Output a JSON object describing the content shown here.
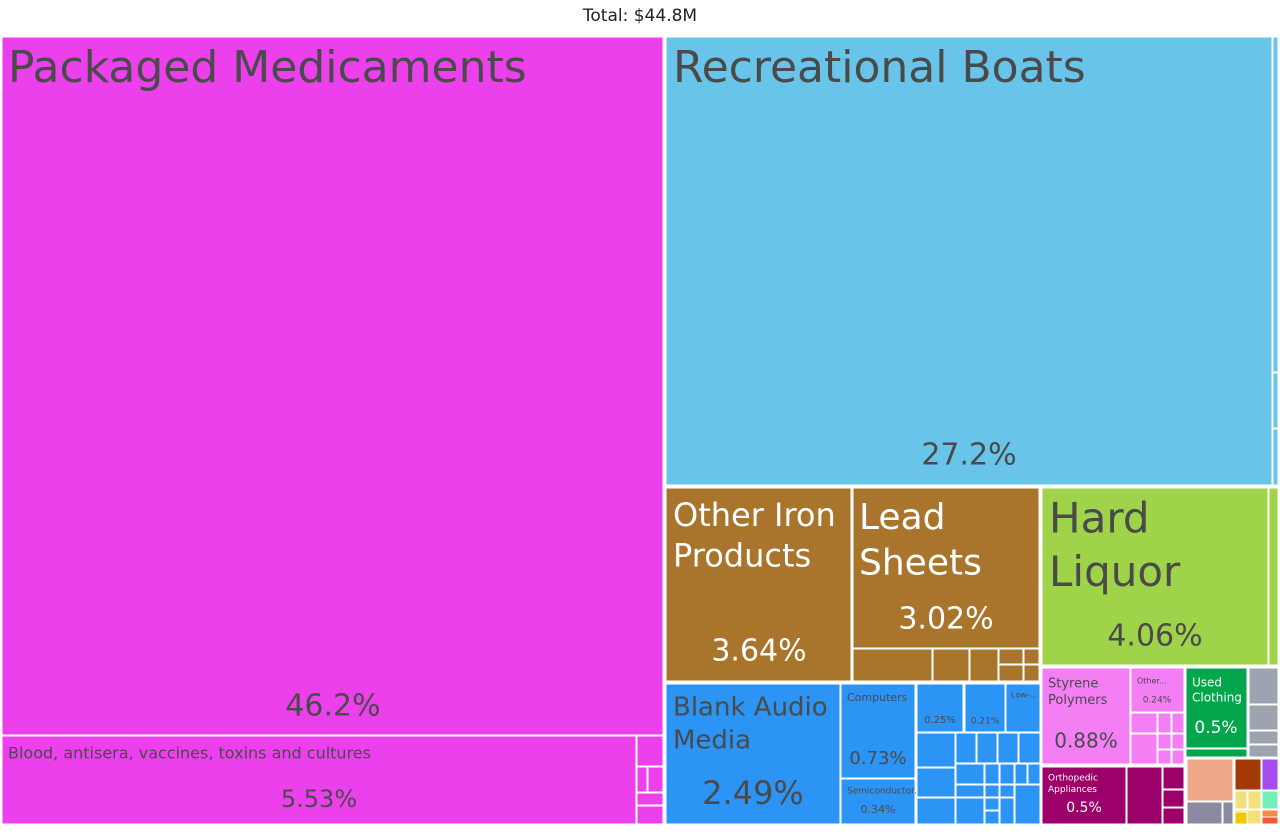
{
  "total_label": "Total: $44.8M",
  "chart_data": {
    "type": "treemap",
    "title": "Total: $44.8M",
    "nodes": [
      {
        "id": "pharma",
        "name": "",
        "color": "#ed40ed",
        "children": [
          {
            "id": "packaged-medicaments",
            "name": "Packaged Medicaments",
            "pct": "46.2%",
            "value": 46.2,
            "color": "#ed40ed",
            "text": "dark"
          },
          {
            "id": "blood-antisera",
            "name": "Blood, antisera, vaccines, toxins and cultures",
            "pct": "5.53%",
            "value": 5.53,
            "color": "#ed40ed",
            "text": "dark"
          }
        ]
      },
      {
        "id": "transport",
        "name": "",
        "color": "#69c4e9",
        "children": [
          {
            "id": "recreational-boats",
            "name": "Recreational Boats",
            "pct": "27.2%",
            "value": 27.2,
            "color": "#69c4e9",
            "text": "dark"
          }
        ]
      },
      {
        "id": "metals",
        "name": "",
        "color": "#a9742b",
        "children": [
          {
            "id": "other-iron-products",
            "name": "Other Iron Products",
            "pct": "3.64%",
            "value": 3.64,
            "color": "#a9742b",
            "text": "light"
          },
          {
            "id": "lead-sheets",
            "name": "Lead Sheets",
            "pct": "3.02%",
            "value": 3.02,
            "color": "#a9742b",
            "text": "light"
          }
        ]
      },
      {
        "id": "foodstuffs",
        "name": "",
        "color": "#9fd44a",
        "children": [
          {
            "id": "hard-liquor",
            "name": "Hard Liquor",
            "pct": "4.06%",
            "value": 4.06,
            "color": "#9fd44a",
            "text": "dark"
          }
        ]
      },
      {
        "id": "machines",
        "name": "",
        "color": "#2b94f5",
        "children": [
          {
            "id": "blank-audio-media",
            "name": "Blank Audio Media",
            "pct": "2.49%",
            "value": 2.49,
            "color": "#2b94f5",
            "text": "dark"
          },
          {
            "id": "computers",
            "name": "Computers",
            "pct": "0.73%",
            "value": 0.73,
            "color": "#2b94f5",
            "text": "dark"
          },
          {
            "id": "semiconductor",
            "name": "Semiconductor...",
            "pct": "0.34%",
            "value": 0.34,
            "color": "#2b94f5",
            "text": "dark"
          },
          {
            "id": "machines-025",
            "name": "",
            "pct": "0.25%",
            "value": 0.25,
            "color": "#2b94f5",
            "text": "dark"
          },
          {
            "id": "machines-021",
            "name": "",
            "pct": "0.21%",
            "value": 0.21,
            "color": "#2b94f5",
            "text": "dark"
          },
          {
            "id": "low-voltage",
            "name": "Low-...",
            "pct": "",
            "color": "#2b94f5",
            "text": "dark"
          }
        ]
      },
      {
        "id": "plastics",
        "name": "",
        "color": "#f47ff4",
        "children": [
          {
            "id": "styrene-polymers",
            "name": "Styrene Polymers",
            "pct": "0.88%",
            "value": 0.88,
            "color": "#f47ff4",
            "text": "dark"
          },
          {
            "id": "plastics-other",
            "name": "Other...",
            "pct": "0.24%",
            "value": 0.24,
            "color": "#f47ff4",
            "text": "dark"
          }
        ]
      },
      {
        "id": "textiles",
        "name": "",
        "color": "#03a64a",
        "children": [
          {
            "id": "used-clothing",
            "name": "Used Clothing",
            "pct": "0.5%",
            "value": 0.5,
            "color": "#03a64a",
            "text": "light"
          }
        ]
      },
      {
        "id": "instruments",
        "name": "",
        "color": "#9c0069",
        "children": [
          {
            "id": "orthopedic-appliances",
            "name": "Orthopedic Appliances",
            "pct": "0.5%",
            "value": 0.5,
            "color": "#9c0069",
            "text": "light"
          }
        ]
      }
    ]
  }
}
